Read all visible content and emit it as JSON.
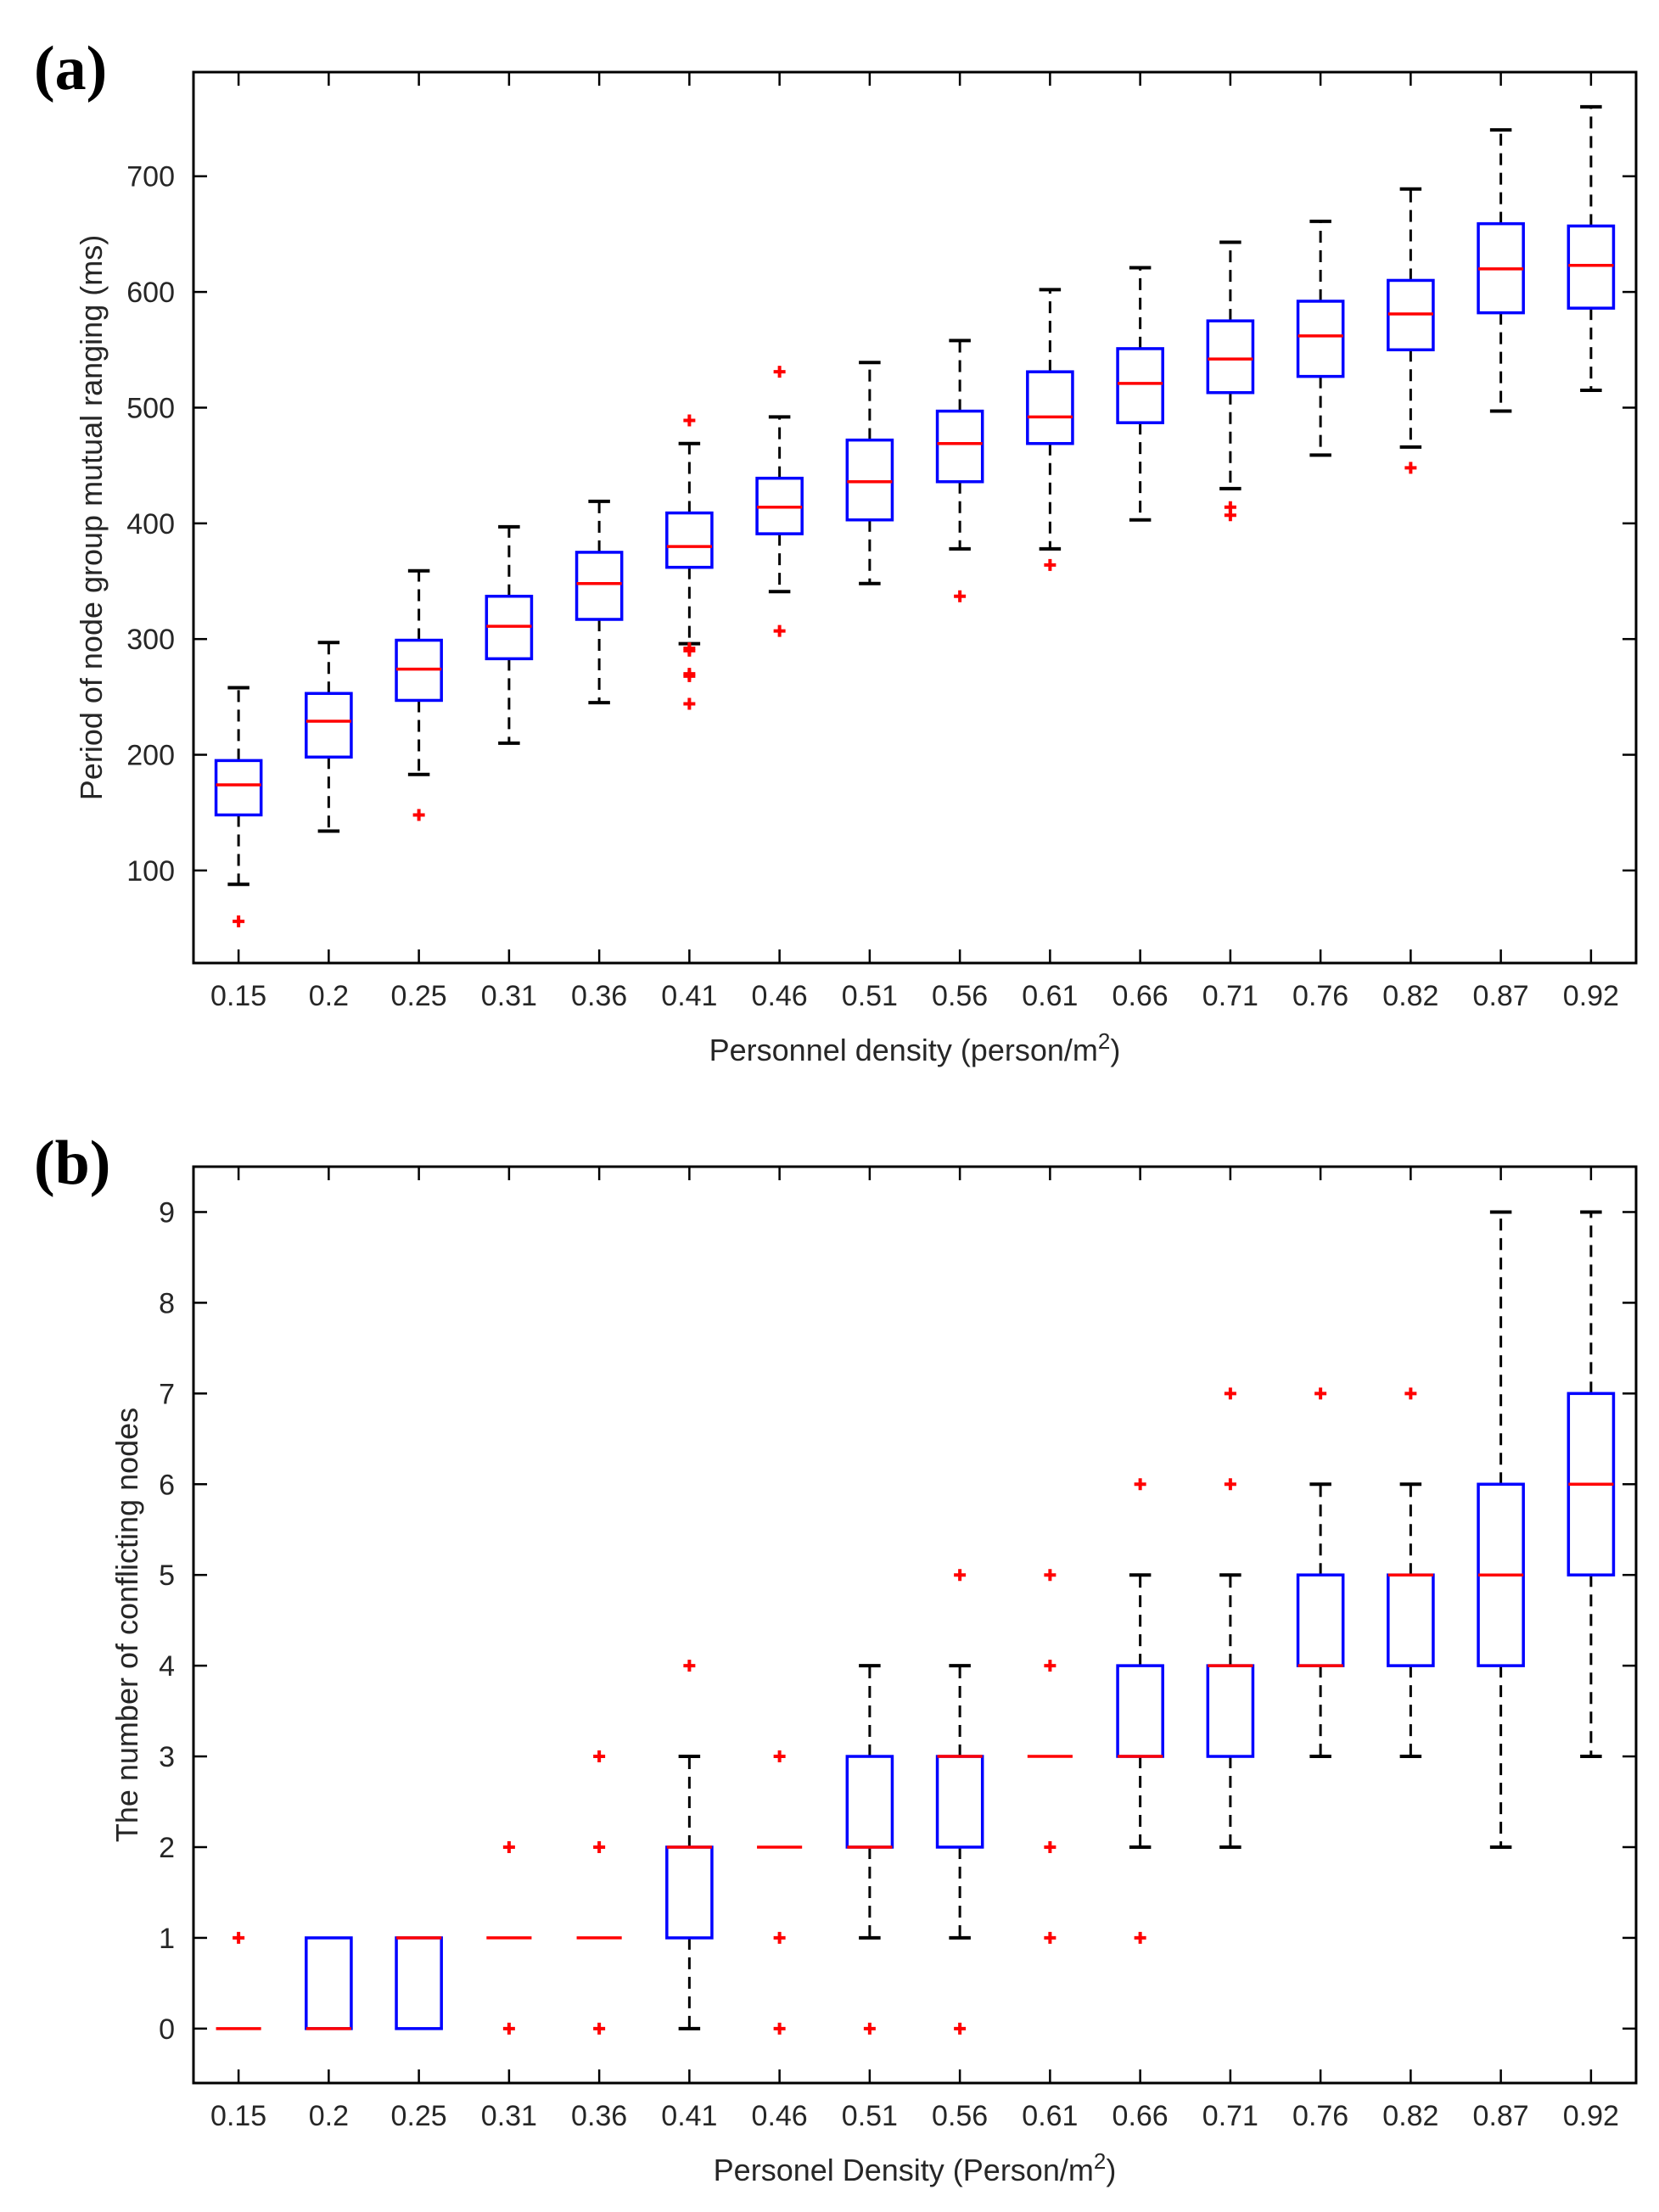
{
  "colors": {
    "box": "#0000ff",
    "median": "#ff0000",
    "whisker": "#000000",
    "outlier": "#ff0000",
    "axis": "#000000",
    "tick_text": "#262626"
  },
  "chart_data": [
    {
      "panel_label": "(a)",
      "type": "boxplot",
      "xlabel": "Personnel density (person/m",
      "xlabel_sup": "2",
      "xlabel_end": ")",
      "ylabel": "Period of node group mutual ranging (ms)",
      "ylim": [
        20,
        790
      ],
      "yticks": [
        100,
        200,
        300,
        400,
        500,
        600,
        700
      ],
      "categories": [
        "0.15",
        "0.2",
        "0.25",
        "0.31",
        "0.36",
        "0.41",
        "0.46",
        "0.51",
        "0.56",
        "0.61",
        "0.66",
        "0.71",
        "0.76",
        "0.82",
        "0.87",
        "0.92"
      ],
      "boxes": [
        {
          "q1": 148,
          "median": 174,
          "q3": 195,
          "whisker_low": 88,
          "whisker_high": 258,
          "outliers": [
            56
          ]
        },
        {
          "q1": 198,
          "median": 229,
          "q3": 253,
          "whisker_low": 134,
          "whisker_high": 297,
          "outliers": []
        },
        {
          "q1": 247,
          "median": 274,
          "q3": 299,
          "whisker_low": 183,
          "whisker_high": 359,
          "outliers": [
            148
          ]
        },
        {
          "q1": 283,
          "median": 311,
          "q3": 337,
          "whisker_low": 210,
          "whisker_high": 397,
          "outliers": []
        },
        {
          "q1": 317,
          "median": 348,
          "q3": 375,
          "whisker_low": 245,
          "whisker_high": 419,
          "outliers": []
        },
        {
          "q1": 362,
          "median": 380,
          "q3": 409,
          "whisker_low": 296,
          "whisker_high": 469,
          "outliers": [
            244,
            268,
            270,
            290,
            292,
            489
          ]
        },
        {
          "q1": 391,
          "median": 414,
          "q3": 439,
          "whisker_low": 341,
          "whisker_high": 492,
          "outliers": [
            307,
            531
          ]
        },
        {
          "q1": 403,
          "median": 436,
          "q3": 472,
          "whisker_low": 348,
          "whisker_high": 539,
          "outliers": []
        },
        {
          "q1": 436,
          "median": 469,
          "q3": 497,
          "whisker_low": 378,
          "whisker_high": 558,
          "outliers": [
            337
          ]
        },
        {
          "q1": 469,
          "median": 492,
          "q3": 531,
          "whisker_low": 378,
          "whisker_high": 602,
          "outliers": [
            364
          ]
        },
        {
          "q1": 487,
          "median": 521,
          "q3": 551,
          "whisker_low": 403,
          "whisker_high": 621,
          "outliers": []
        },
        {
          "q1": 513,
          "median": 542,
          "q3": 575,
          "whisker_low": 430,
          "whisker_high": 643,
          "outliers": [
            407,
            414
          ]
        },
        {
          "q1": 527,
          "median": 562,
          "q3": 592,
          "whisker_low": 459,
          "whisker_high": 661,
          "outliers": []
        },
        {
          "q1": 550,
          "median": 581,
          "q3": 610,
          "whisker_low": 466,
          "whisker_high": 689,
          "outliers": [
            448
          ]
        },
        {
          "q1": 582,
          "median": 620,
          "q3": 659,
          "whisker_low": 497,
          "whisker_high": 740,
          "outliers": []
        },
        {
          "q1": 586,
          "median": 623,
          "q3": 657,
          "whisker_low": 515,
          "whisker_high": 760,
          "outliers": []
        }
      ]
    },
    {
      "panel_label": "(b)",
      "type": "boxplot",
      "xlabel": "Personel Density (Person/m",
      "xlabel_sup": "2",
      "xlabel_end": ")",
      "ylabel": "The number of conflicting nodes",
      "ylim": [
        -0.6,
        9.5
      ],
      "yticks": [
        0,
        1,
        2,
        3,
        4,
        5,
        6,
        7,
        8,
        9
      ],
      "categories": [
        "0.15",
        "0.2",
        "0.25",
        "0.31",
        "0.36",
        "0.41",
        "0.46",
        "0.51",
        "0.56",
        "0.61",
        "0.66",
        "0.71",
        "0.76",
        "0.82",
        "0.87",
        "0.92"
      ],
      "boxes": [
        {
          "q1": 0,
          "median": 0,
          "q3": 0,
          "whisker_low": 0,
          "whisker_high": 0,
          "outliers": [
            1
          ]
        },
        {
          "q1": 0,
          "median": 0,
          "q3": 1,
          "whisker_low": 0,
          "whisker_high": 1,
          "outliers": []
        },
        {
          "q1": 0,
          "median": 1,
          "q3": 1,
          "whisker_low": 0,
          "whisker_high": 1,
          "outliers": []
        },
        {
          "q1": 1,
          "median": 1,
          "q3": 1,
          "whisker_low": 1,
          "whisker_high": 1,
          "outliers": [
            0,
            2
          ]
        },
        {
          "q1": 1,
          "median": 1,
          "q3": 1,
          "whisker_low": 1,
          "whisker_high": 1,
          "outliers": [
            0,
            2,
            3
          ]
        },
        {
          "q1": 1,
          "median": 2,
          "q3": 2,
          "whisker_low": 0,
          "whisker_high": 3,
          "outliers": [
            4
          ]
        },
        {
          "q1": 2,
          "median": 2,
          "q3": 2,
          "whisker_low": 2,
          "whisker_high": 2,
          "outliers": [
            0,
            1,
            3
          ]
        },
        {
          "q1": 2,
          "median": 2,
          "q3": 3,
          "whisker_low": 1,
          "whisker_high": 4,
          "outliers": [
            0
          ]
        },
        {
          "q1": 2,
          "median": 3,
          "q3": 3,
          "whisker_low": 1,
          "whisker_high": 4,
          "outliers": [
            0,
            5
          ]
        },
        {
          "q1": 3,
          "median": 3,
          "q3": 3,
          "whisker_low": 3,
          "whisker_high": 3,
          "outliers": [
            1,
            2,
            4,
            5
          ]
        },
        {
          "q1": 3,
          "median": 3,
          "q3": 4,
          "whisker_low": 2,
          "whisker_high": 5,
          "outliers": [
            1,
            6
          ]
        },
        {
          "q1": 3,
          "median": 4,
          "q3": 4,
          "whisker_low": 2,
          "whisker_high": 5,
          "outliers": [
            6,
            7
          ]
        },
        {
          "q1": 4,
          "median": 4,
          "q3": 5,
          "whisker_low": 3,
          "whisker_high": 6,
          "outliers": [
            7
          ]
        },
        {
          "q1": 4,
          "median": 5,
          "q3": 5,
          "whisker_low": 3,
          "whisker_high": 6,
          "outliers": [
            7
          ]
        },
        {
          "q1": 4,
          "median": 5,
          "q3": 6,
          "whisker_low": 2,
          "whisker_high": 9,
          "outliers": []
        },
        {
          "q1": 5,
          "median": 6,
          "q3": 7,
          "whisker_low": 3,
          "whisker_high": 9,
          "outliers": []
        }
      ]
    }
  ]
}
